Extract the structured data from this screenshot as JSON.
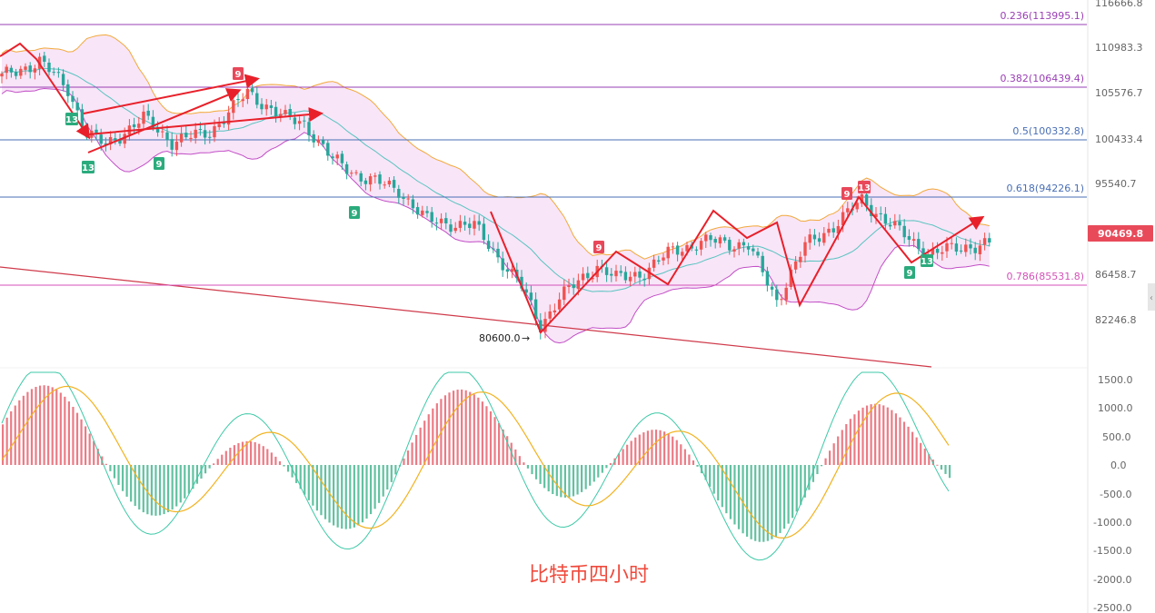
{
  "chart_data": {
    "type": "candlestick",
    "price_axis": {
      "ticks": [
        "116666.8",
        "110983.3",
        "105576.7",
        "100433.4",
        "95540.7",
        "90469.8",
        "86458.7",
        "82246.8"
      ],
      "current_price": "90469.8"
    },
    "macd_axis": {
      "ticks": [
        "1500.0",
        "1000.0",
        "500.0",
        "0.0",
        "-500.0",
        "-1000.0",
        "-1500.0",
        "-2000.0",
        "-2500.0"
      ]
    },
    "fib_levels": [
      {
        "label": "0.236(113995.1)",
        "price": 113995.1
      },
      {
        "label": "0.382(106439.4)",
        "price": 106439.4
      },
      {
        "label": "0.5(100332.8)",
        "price": 100332.8
      },
      {
        "label": "0.618(94226.1)",
        "price": 94226.1
      },
      {
        "label": "0.786(85531.8)",
        "price": 85531.8
      }
    ],
    "low_annotation": "80600.0",
    "td_markers": [
      {
        "label": "13",
        "kind": "buy"
      },
      {
        "label": "13",
        "kind": "buy"
      },
      {
        "label": "9",
        "kind": "buy"
      },
      {
        "label": "9",
        "kind": "sell"
      },
      {
        "label": "9",
        "kind": "buy"
      },
      {
        "label": "9",
        "kind": "sell"
      },
      {
        "label": "9",
        "kind": "sell"
      },
      {
        "label": "13",
        "kind": "sell"
      },
      {
        "label": "9",
        "kind": "buy"
      },
      {
        "label": "13",
        "kind": "buy"
      }
    ],
    "watermark": "比特币四小时",
    "colors": {
      "up": "#26a69a",
      "down": "#ef5350",
      "wave": "#e8202a",
      "band_fill": "#f6dcf6",
      "band_upper": "#f2a93b",
      "band_lower": "#c24fc6",
      "band_mid": "#58c4c0",
      "fib_purple": "#9a3fb5",
      "fib_blue": "#4a6fb5",
      "fib_pink": "#d451b8",
      "trend_red": "#cf3a4a",
      "macd_dif": "#3ec9a7",
      "macd_dea": "#f2b21f"
    }
  }
}
